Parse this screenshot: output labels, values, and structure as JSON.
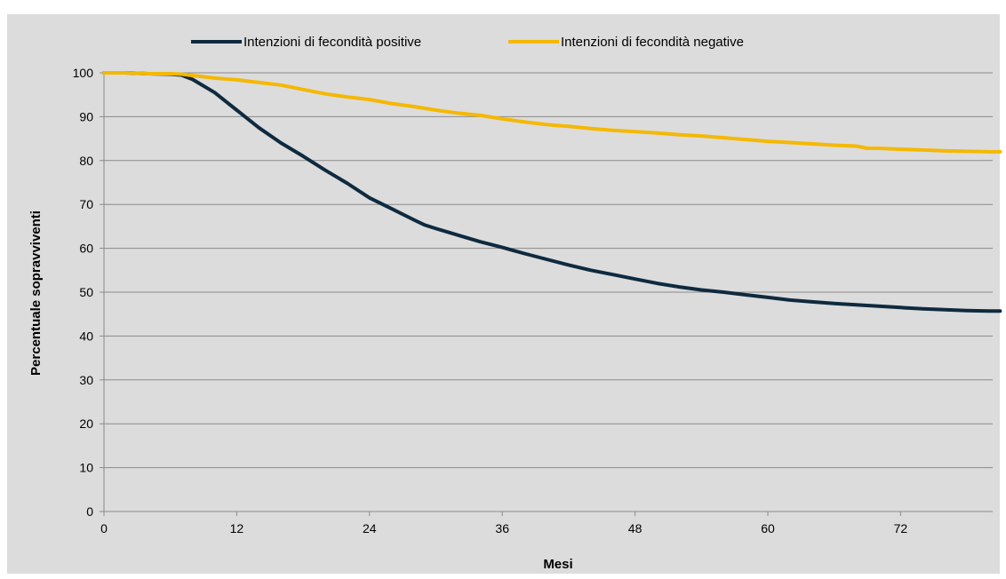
{
  "chart_data": {
    "type": "line",
    "title": "",
    "xlabel": "Mesi",
    "ylabel": "Percentuale sopravviventi",
    "xlim": [
      0,
      81
    ],
    "ylim": [
      0,
      100
    ],
    "x_ticks": [
      0,
      12,
      24,
      36,
      48,
      60,
      72
    ],
    "y_ticks": [
      0,
      10,
      20,
      30,
      40,
      50,
      60,
      70,
      80,
      90,
      100
    ],
    "grid": "horizontal",
    "legend_position": "top",
    "series": [
      {
        "name": "Intenzioni di fecondità positive",
        "color": "#0e2a3f",
        "x": [
          0,
          2,
          4,
          6,
          7,
          8,
          10,
          12,
          14,
          16,
          18,
          20,
          22,
          24,
          26,
          28,
          29,
          30,
          32,
          34,
          36,
          37,
          38,
          40,
          42,
          44,
          46,
          48,
          50,
          52,
          54,
          56,
          58,
          60,
          62,
          64,
          66,
          68,
          70,
          72,
          74,
          76,
          78,
          80,
          81
        ],
        "y": [
          100,
          100,
          99.8,
          99.7,
          99.5,
          98.5,
          95.5,
          91.5,
          87.5,
          84,
          81,
          77.8,
          74.8,
          71.5,
          69,
          66.5,
          65.3,
          64.5,
          63,
          61.5,
          60.2,
          59.5,
          58.8,
          57.5,
          56.2,
          55,
          54,
          53,
          52,
          51.2,
          50.5,
          50,
          49.4,
          48.8,
          48.2,
          47.8,
          47.4,
          47.1,
          46.8,
          46.5,
          46.2,
          46,
          45.8,
          45.7,
          45.7
        ]
      },
      {
        "name": "Intenzioni di fecondità negative",
        "color": "#f5b800",
        "x": [
          0,
          2,
          4,
          6,
          7,
          8,
          10,
          12,
          14,
          16,
          18,
          20,
          22,
          24,
          26,
          28,
          30,
          32,
          34,
          36,
          38,
          40,
          42,
          44,
          46,
          48,
          50,
          52,
          54,
          56,
          58,
          60,
          62,
          64,
          66,
          68,
          69,
          70,
          72,
          74,
          76,
          78,
          80,
          81
        ],
        "y": [
          100,
          100,
          99.8,
          99.8,
          99.7,
          99.4,
          98.8,
          98.4,
          97.8,
          97.2,
          96.2,
          95.2,
          94.5,
          93.9,
          93,
          92.3,
          91.5,
          90.8,
          90.3,
          89.5,
          88.8,
          88.2,
          87.8,
          87.3,
          86.9,
          86.6,
          86.3,
          85.9,
          85.6,
          85.2,
          84.8,
          84.4,
          84.1,
          83.8,
          83.5,
          83.3,
          82.8,
          82.8,
          82.6,
          82.4,
          82.2,
          82.1,
          82,
          82
        ]
      }
    ]
  }
}
